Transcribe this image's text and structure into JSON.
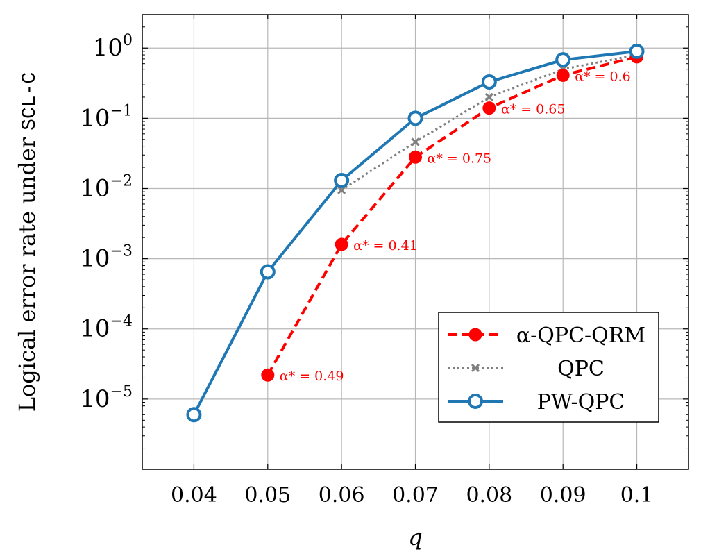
{
  "chart_data": {
    "type": "line",
    "xlabel": "q",
    "ylabel_prefix": "Logical error rate under ",
    "ylabel_code": "SCL-C",
    "yscale": "log",
    "ylim": [
      1e-06,
      3
    ],
    "xlim": [
      0.033,
      0.107
    ],
    "x_ticks": [
      0.04,
      0.05,
      0.06,
      0.07,
      0.08,
      0.09,
      0.1
    ],
    "x_tick_labels": [
      "0.04",
      "0.05",
      "0.06",
      "0.07",
      "0.08",
      "0.09",
      "0.1"
    ],
    "y_tick_exponents": [
      0,
      -1,
      -2,
      -3,
      -4,
      -5
    ],
    "grid": true,
    "legend_position": "bottom-right",
    "series": [
      {
        "name": "α-QPC-QRM",
        "color": "#ff0000",
        "style": "dashed",
        "marker": "filled-circle",
        "x": [
          0.05,
          0.06,
          0.07,
          0.08,
          0.09,
          0.1
        ],
        "y": [
          2.2e-05,
          0.0016,
          0.028,
          0.14,
          0.41,
          0.75
        ]
      },
      {
        "name": "QPC",
        "color": "#7f7f7f",
        "style": "dotted",
        "marker": "x",
        "x": [
          0.06,
          0.07,
          0.08,
          0.09,
          0.1
        ],
        "y": [
          0.0095,
          0.046,
          0.2,
          0.5,
          0.8
        ]
      },
      {
        "name": "PW-QPC",
        "color": "#1f77b4",
        "style": "solid",
        "marker": "open-circle",
        "x": [
          0.04,
          0.05,
          0.06,
          0.07,
          0.08,
          0.09,
          0.1
        ],
        "y": [
          6e-06,
          0.00065,
          0.013,
          0.1,
          0.33,
          0.68,
          0.9
        ]
      }
    ],
    "annotations": [
      {
        "text": "α* = 0.49",
        "x": 0.05,
        "y": 2.2e-05
      },
      {
        "text": "α* = 0.41",
        "x": 0.06,
        "y": 0.0016
      },
      {
        "text": "α* = 0.75",
        "x": 0.07,
        "y": 0.028
      },
      {
        "text": "α* = 0.65",
        "x": 0.08,
        "y": 0.14
      },
      {
        "text": "α* = 0.6",
        "x": 0.09,
        "y": 0.41
      }
    ]
  }
}
